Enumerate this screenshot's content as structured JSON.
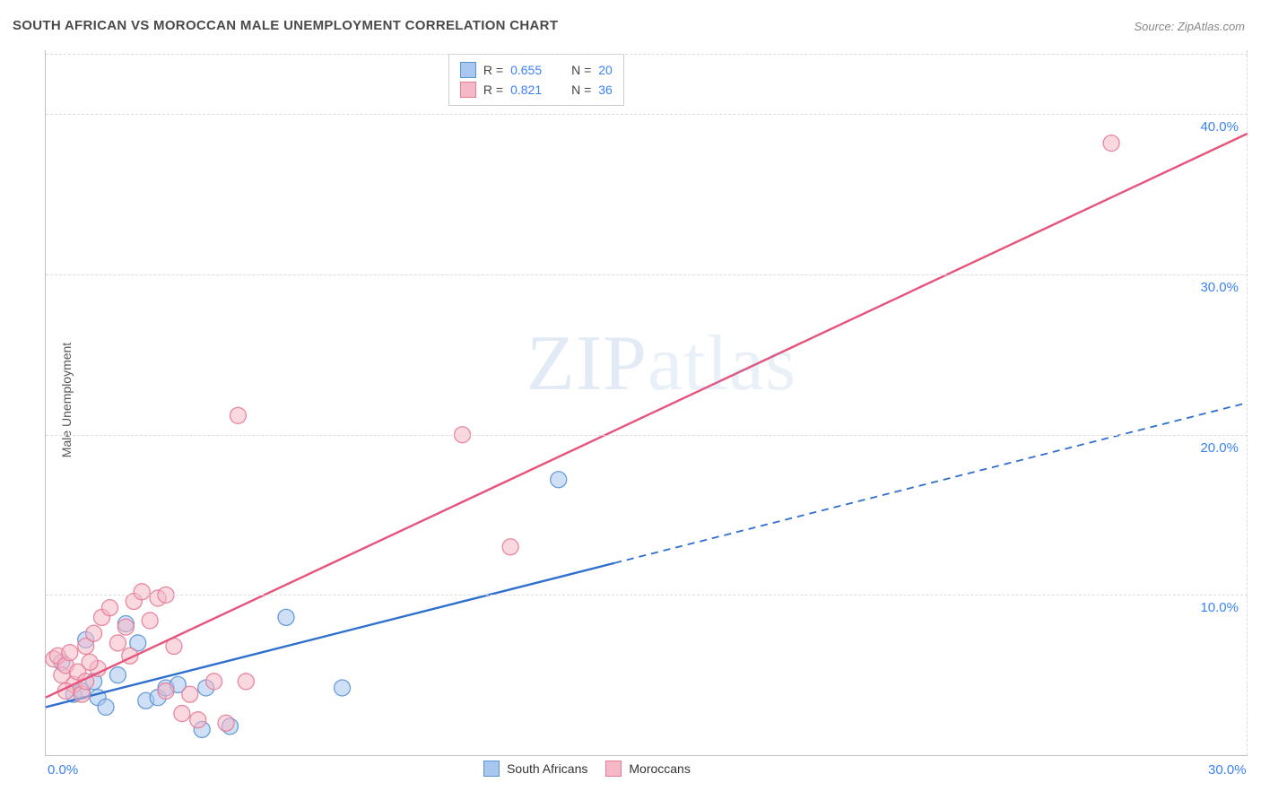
{
  "title": "SOUTH AFRICAN VS MOROCCAN MALE UNEMPLOYMENT CORRELATION CHART",
  "source": "Source: ZipAtlas.com",
  "y_axis_label": "Male Unemployment",
  "watermark": "ZIPatlas",
  "chart": {
    "type": "scatter",
    "xlim": [
      0,
      30
    ],
    "ylim": [
      0,
      44
    ],
    "x_ticks": [
      0,
      30
    ],
    "x_tick_labels": [
      "0.0%",
      "30.0%"
    ],
    "y_ticks": [
      10,
      20,
      30,
      40
    ],
    "y_tick_labels": [
      "10.0%",
      "20.0%",
      "30.0%",
      "40.0%"
    ],
    "plot_bg": "#ffffff",
    "grid_color": "#dcdcdc",
    "axis_color": "#bfbfbf",
    "tick_label_color": "#3b82f6",
    "marker_radius": 9,
    "marker_opacity": 0.55,
    "marker_stroke_opacity": 0.9,
    "line_width": 2.4,
    "series": [
      {
        "name": "South Africans",
        "color_fill": "#a7c7ee",
        "color_stroke": "#5b94d6",
        "line_color": "#2f6fd0",
        "R": "0.655",
        "N": "20",
        "trend": {
          "x1": 0,
          "y1": 3.0,
          "x2": 30,
          "y2": 22.0,
          "dash_after_x": 14.2
        },
        "points": [
          [
            0.4,
            5.8
          ],
          [
            0.7,
            3.8
          ],
          [
            0.9,
            4.0
          ],
          [
            1.0,
            7.2
          ],
          [
            1.3,
            3.6
          ],
          [
            1.5,
            3.0
          ],
          [
            1.8,
            5.0
          ],
          [
            2.0,
            8.2
          ],
          [
            2.3,
            7.0
          ],
          [
            2.5,
            3.4
          ],
          [
            2.8,
            3.6
          ],
          [
            3.0,
            4.2
          ],
          [
            3.3,
            4.4
          ],
          [
            3.9,
            1.6
          ],
          [
            4.0,
            4.2
          ],
          [
            4.6,
            1.8
          ],
          [
            6.0,
            8.6
          ],
          [
            7.4,
            4.2
          ],
          [
            12.8,
            17.2
          ],
          [
            1.2,
            4.6
          ]
        ]
      },
      {
        "name": "Moroccans",
        "color_fill": "#f6b8c6",
        "color_stroke": "#e57c96",
        "line_color": "#e6537b",
        "R": "0.821",
        "N": "36",
        "trend": {
          "x1": 0,
          "y1": 3.6,
          "x2": 30,
          "y2": 38.8,
          "dash_after_x": null
        },
        "points": [
          [
            0.2,
            6.0
          ],
          [
            0.3,
            6.2
          ],
          [
            0.4,
            5.0
          ],
          [
            0.5,
            5.6
          ],
          [
            0.6,
            6.4
          ],
          [
            0.7,
            4.4
          ],
          [
            0.8,
            5.2
          ],
          [
            0.9,
            3.8
          ],
          [
            1.0,
            4.6
          ],
          [
            1.0,
            6.8
          ],
          [
            1.2,
            7.6
          ],
          [
            1.3,
            5.4
          ],
          [
            1.4,
            8.6
          ],
          [
            1.6,
            9.2
          ],
          [
            1.8,
            7.0
          ],
          [
            2.0,
            8.0
          ],
          [
            2.2,
            9.6
          ],
          [
            2.4,
            10.2
          ],
          [
            2.6,
            8.4
          ],
          [
            2.8,
            9.8
          ],
          [
            3.0,
            10.0
          ],
          [
            3.0,
            4.0
          ],
          [
            3.2,
            6.8
          ],
          [
            3.4,
            2.6
          ],
          [
            3.6,
            3.8
          ],
          [
            3.8,
            2.2
          ],
          [
            4.2,
            4.6
          ],
          [
            4.5,
            2.0
          ],
          [
            4.8,
            21.2
          ],
          [
            5.0,
            4.6
          ],
          [
            10.4,
            20.0
          ],
          [
            11.6,
            13.0
          ],
          [
            26.6,
            38.2
          ],
          [
            1.1,
            5.8
          ],
          [
            0.5,
            4.0
          ],
          [
            2.1,
            6.2
          ]
        ]
      }
    ]
  },
  "stat_box": {
    "rows": [
      {
        "swatch_fill": "#a7c7ee",
        "swatch_stroke": "#5b94d6",
        "r_label": "R =",
        "r_val": "0.655",
        "n_label": "N =",
        "n_val": "20"
      },
      {
        "swatch_fill": "#f6b8c6",
        "swatch_stroke": "#e57c96",
        "r_label": "R =",
        "r_val": "0.821",
        "n_label": "N =",
        "n_val": "36"
      }
    ]
  },
  "legend_bottom": [
    {
      "swatch_fill": "#a7c7ee",
      "swatch_stroke": "#5b94d6",
      "label": "South Africans"
    },
    {
      "swatch_fill": "#f6b8c6",
      "swatch_stroke": "#e57c96",
      "label": "Moroccans"
    }
  ]
}
